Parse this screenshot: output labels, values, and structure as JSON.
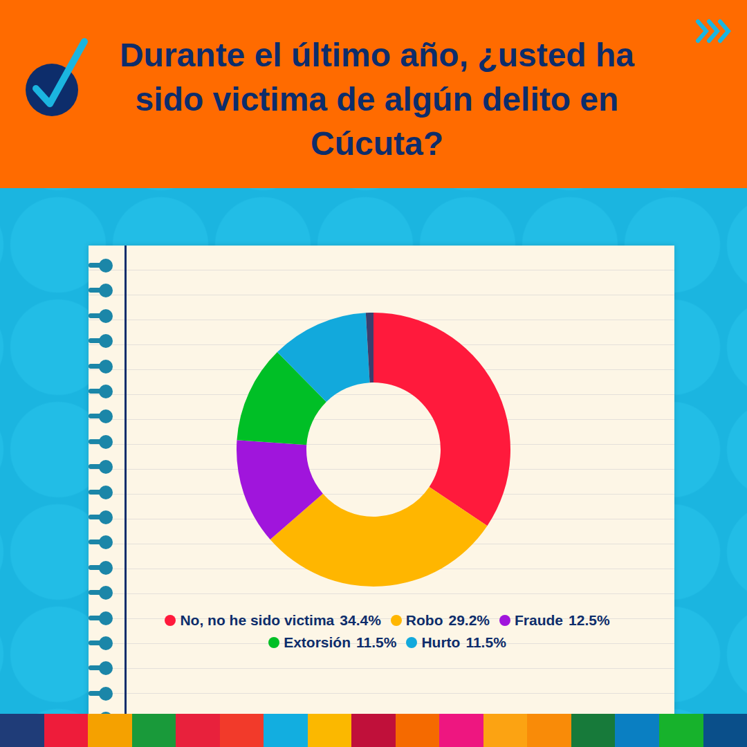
{
  "chart_data": {
    "type": "doughnut",
    "title": "Durante el último año, ¿usted ha sido victima de algún delito en Cúcuta?",
    "categories": [
      "No, no he sido victima",
      "Robo",
      "Fraude",
      "Extorsión",
      "Hurto",
      null
    ],
    "values": [
      34.4,
      29.2,
      12.5,
      11.5,
      11.5,
      0.9
    ],
    "value_labels": [
      "34.4%",
      "29.2%",
      "12.5%",
      "11.5%",
      "11.5%",
      null
    ],
    "colors": [
      "#ff1a3c",
      "#ffb600",
      "#a015dc",
      "#00bf26",
      "#12a9dc",
      "#3a3f6e"
    ],
    "legend": "bottom"
  }
}
